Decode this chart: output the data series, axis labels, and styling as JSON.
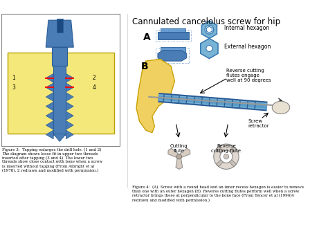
{
  "title_right": "Cannulated cancelolus screw for hip",
  "bg_color": "#ffffff",
  "left_panel_bg": "#fffacd",
  "left_panel_border": "#cccccc",
  "screw_color": "#4a7cb5",
  "screw_dark": "#2a5c95",
  "bone_color": "#f0e68c",
  "bone_border": "#c8a800",
  "fig3_caption": "Figure 3:  Tapping enlarges the drill hole. (1 and 2)\nThe diagram shows loose fit in upper two threads\ninserted after tapping (3 and 4)  The lower two\nthreads show close contact with bone when a screw\nis inserted without tapping (From Albright et al\n(1978), 2 redrawn and modified with permission.)",
  "fig4_caption": "Figure 4:  (A). Screw with a round head and an inner recess hexagon is easier to remove\nthan one with an outer hexagon (B). Reverse cutting flutes perform well when a screw\nretractor brings these at perpendicular to the bone face (From Tencer et al (1996)4\nredrawn and modified with permission.)",
  "label_A": "A",
  "label_B": "B",
  "text_internal_hex": "Internal hexagon",
  "text_external_hex": "External hexagon",
  "text_reverse_cutting": "Reverse cutting\nflutes engage\nwell at 90 degrees",
  "text_screw_retractor": "Screw\nretractor",
  "text_cutting_flute": "Cutting\nflute",
  "text_reverse_cutting_flute": "Reverse\ncutting flute"
}
